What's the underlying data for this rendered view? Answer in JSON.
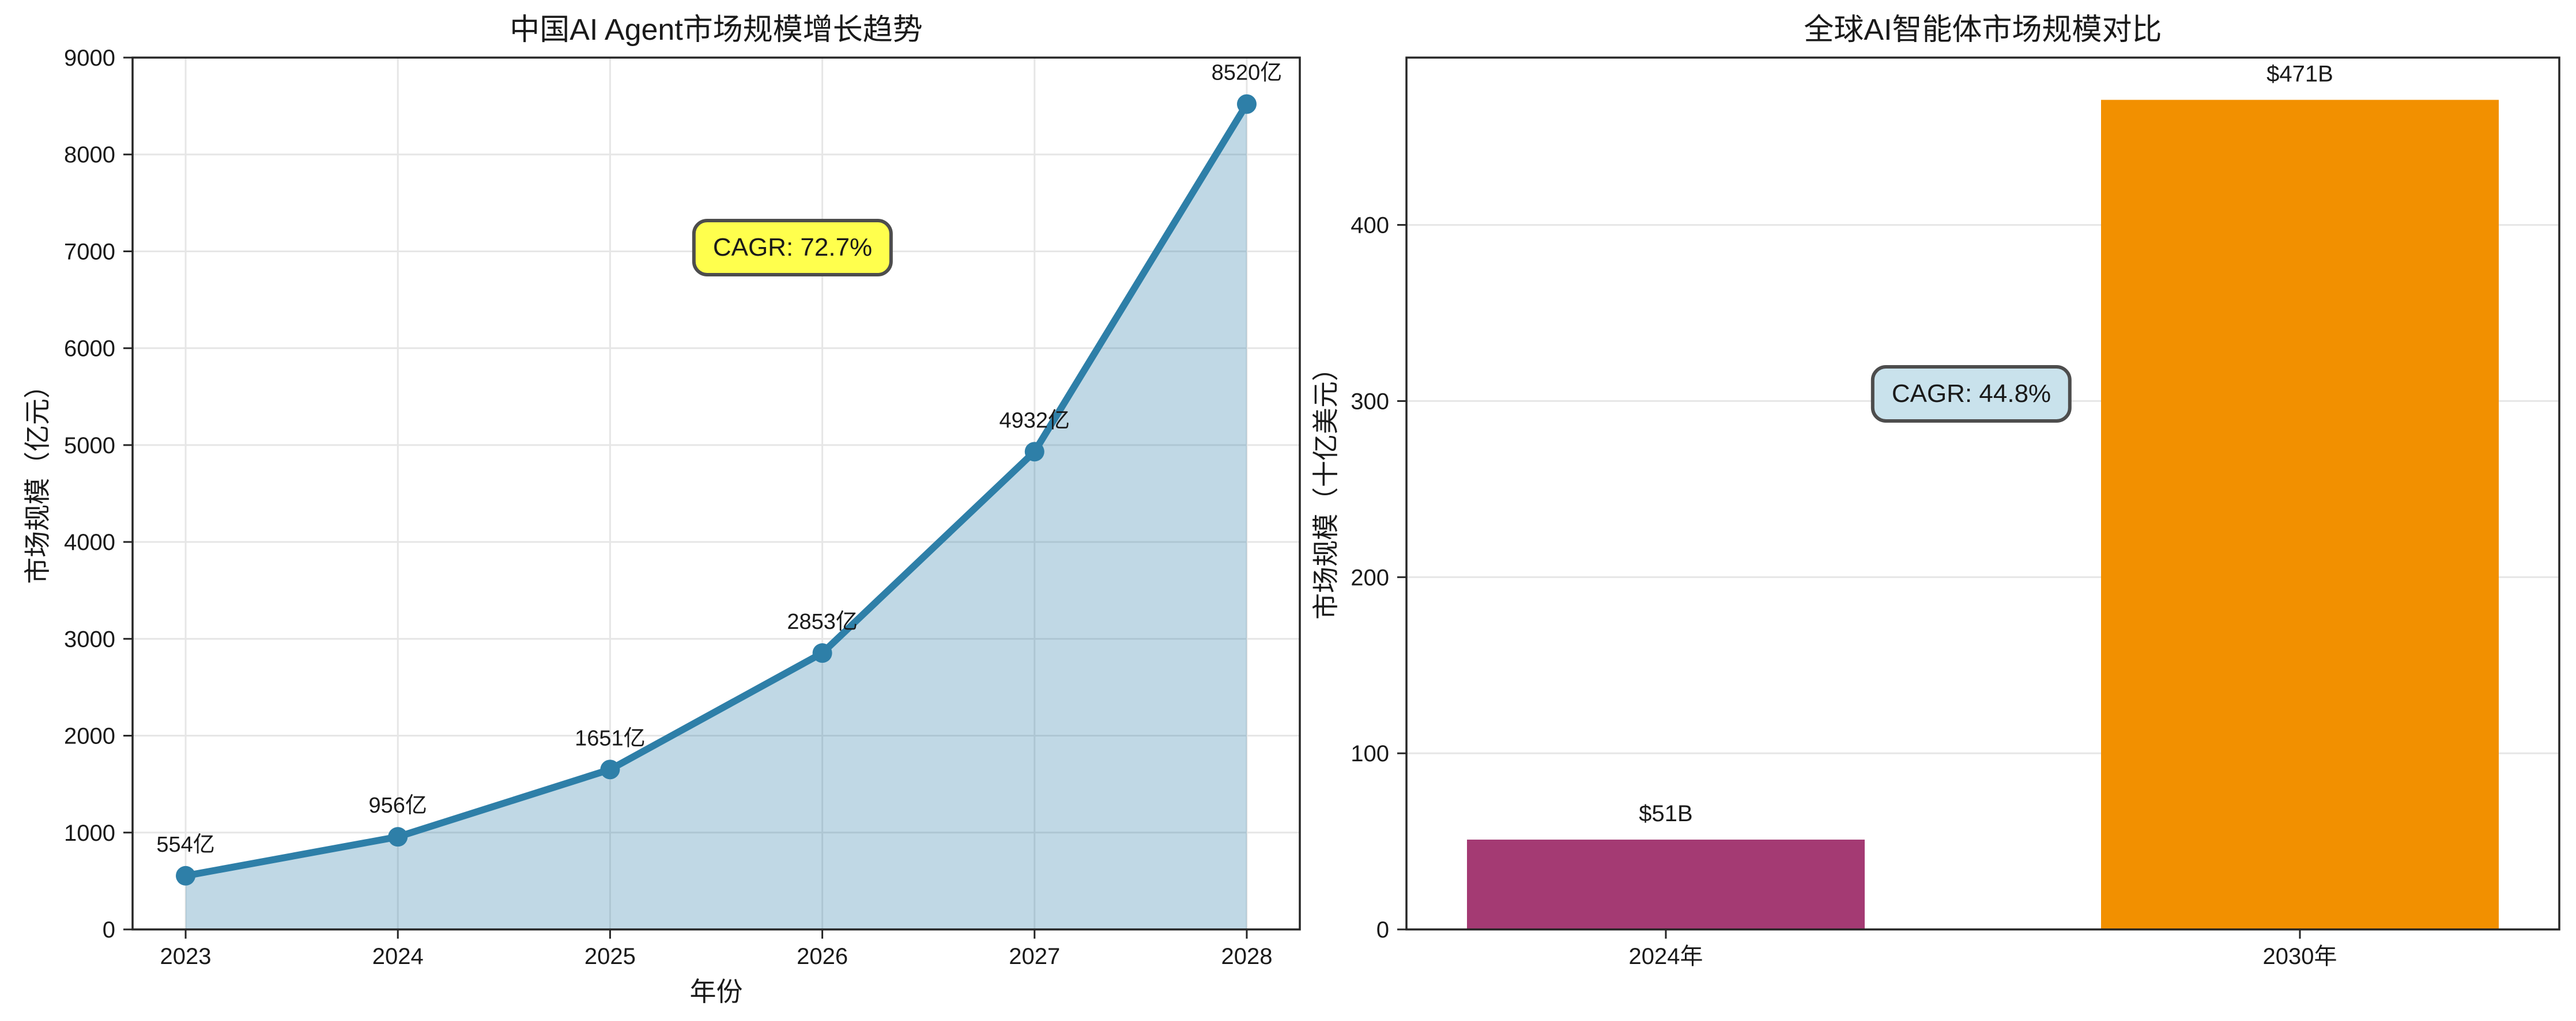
{
  "figure": {
    "background": "#ffffff",
    "text_color": "#1a1a1a",
    "grid_color": "#e6e6e6",
    "spine_color": "#262626"
  },
  "chart_data": [
    {
      "type": "area",
      "title": "中国AI Agent市场规模增长趋势",
      "xlabel": "年份",
      "ylabel": "市场规模（亿元）",
      "x": [
        2023,
        2024,
        2025,
        2026,
        2027,
        2028
      ],
      "xtick_labels": [
        "2023",
        "2024",
        "2025",
        "2026",
        "2027",
        "2028"
      ],
      "values": [
        554,
        956,
        1651,
        2853,
        4932,
        8520
      ],
      "point_labels": [
        "554亿",
        "956亿",
        "1651亿",
        "2853亿",
        "4932亿",
        "8520亿"
      ],
      "ylim": [
        0,
        9000
      ],
      "yticks": [
        0,
        1000,
        2000,
        3000,
        4000,
        5000,
        6000,
        7000,
        8000,
        9000
      ],
      "grid": "both",
      "line_color": "#2e7fa8",
      "fill_color": "#2e7fa8",
      "fill_opacity": 0.3,
      "annotation": {
        "text": "CAGR: 72.7%",
        "fill": "#ffff4d",
        "border": "#4d4d4d"
      }
    },
    {
      "type": "bar",
      "title": "全球AI智能体市场规模对比",
      "xlabel": "",
      "ylabel": "市场规模（十亿美元）",
      "categories": [
        "2024年",
        "2030年"
      ],
      "values": [
        51,
        471
      ],
      "bar_labels": [
        "$51B",
        "$471B"
      ],
      "bar_colors": [
        "#a43a73",
        "#f29000"
      ],
      "ylim": [
        0,
        495
      ],
      "yticks": [
        0,
        100,
        200,
        300,
        400
      ],
      "grid": "y",
      "annotation": {
        "text": "CAGR: 44.8%",
        "fill": "#c9e2ec",
        "border": "#4d4d4d"
      }
    }
  ]
}
